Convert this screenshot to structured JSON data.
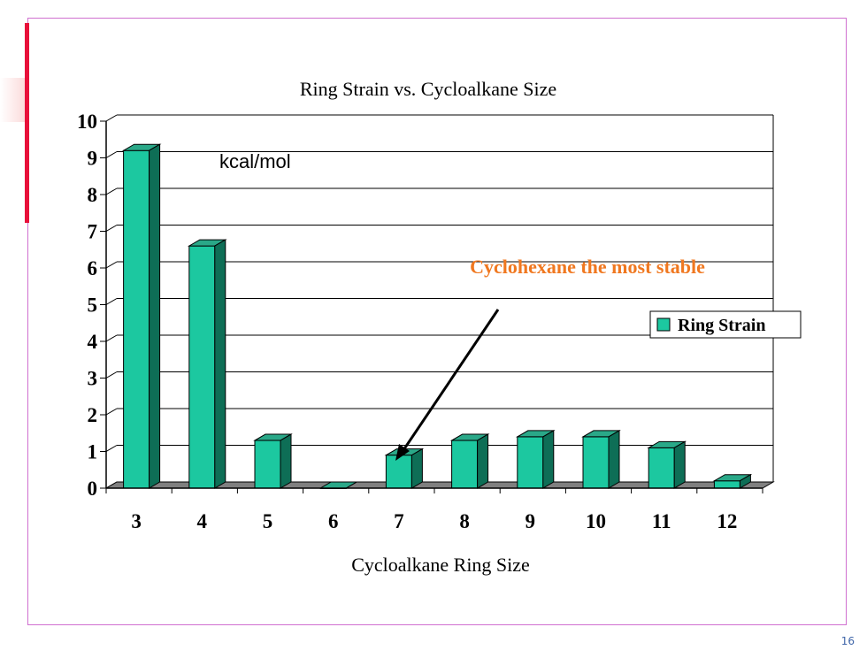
{
  "chart_data": {
    "type": "bar",
    "title": "Ring Strain vs. Cycloalkane Size",
    "xlabel": "Cycloalkane Ring Size",
    "ylabel": "",
    "unit_note": "kcal/mol",
    "categories": [
      "3",
      "4",
      "5",
      "6",
      "7",
      "8",
      "9",
      "10",
      "11",
      "12"
    ],
    "series": [
      {
        "name": "Ring Strain",
        "values": [
          9.2,
          6.6,
          1.3,
          0.0,
          0.9,
          1.3,
          1.4,
          1.4,
          1.1,
          0.2
        ]
      }
    ],
    "ylim": [
      0,
      10
    ],
    "yticks": [
      "0",
      "1",
      "2",
      "3",
      "4",
      "5",
      "6",
      "7",
      "8",
      "9",
      "10"
    ],
    "grid": true,
    "legend": "right",
    "annotation": "Cyclohexane the most stable",
    "colors": {
      "bar_front": "#1cc8a0",
      "bar_top": "#2aa888",
      "bar_side": "#0e6e56",
      "floor": "#808080",
      "annotation": "#f07820"
    }
  },
  "page_number": "16"
}
